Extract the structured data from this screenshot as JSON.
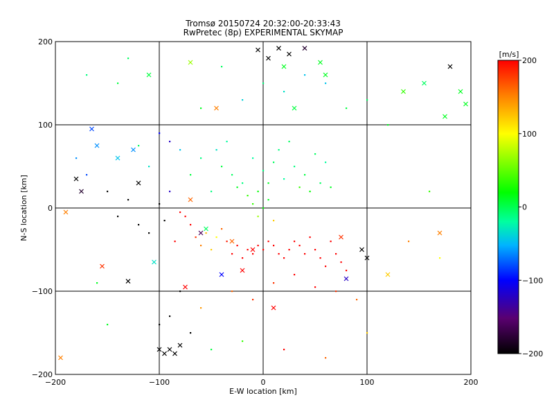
{
  "chart_data": {
    "type": "scatter",
    "title": "Tromsø 20150724 20:32:00-20:33:43",
    "subtitle": "RwPretec (8p) EXPERIMENTAL SKYMAP",
    "xlabel": "E-W location [km]",
    "ylabel": "N-S location [km]",
    "xlim": [
      -200,
      200
    ],
    "ylim": [
      -200,
      200
    ],
    "xticks": [
      -200,
      -100,
      0,
      100,
      200
    ],
    "yticks": [
      -200,
      -100,
      0,
      100,
      200
    ],
    "grid": true,
    "colorbar": {
      "label": "[m/s]",
      "range": [
        -200,
        200
      ],
      "ticks": [
        200,
        100,
        0,
        -100,
        -200
      ],
      "colormap": [
        "#000000",
        "#5a0070",
        "#0000ff",
        "#00b4ff",
        "#00ffa0",
        "#00ff00",
        "#ffff00",
        "#ff8000",
        "#ff0000"
      ]
    },
    "series": [
      {
        "marker": "x",
        "points": [
          [
            -195,
            -180,
            150
          ],
          [
            -190,
            -5,
            150
          ],
          [
            -180,
            35,
            -200
          ],
          [
            -175,
            20,
            -180
          ],
          [
            -165,
            95,
            -80
          ],
          [
            -160,
            75,
            -60
          ],
          [
            -155,
            -70,
            180
          ],
          [
            -140,
            60,
            -40
          ],
          [
            -130,
            -88,
            -200
          ],
          [
            -125,
            70,
            -60
          ],
          [
            -120,
            30,
            -200
          ],
          [
            -105,
            -65,
            -20
          ],
          [
            -100,
            -170,
            -200
          ],
          [
            -95,
            -175,
            -200
          ],
          [
            -90,
            -170,
            -200
          ],
          [
            -85,
            -175,
            -200
          ],
          [
            -80,
            -165,
            -200
          ],
          [
            -75,
            -95,
            200
          ],
          [
            -70,
            10,
            160
          ],
          [
            -60,
            -30,
            -160
          ],
          [
            -55,
            -25,
            20
          ],
          [
            -45,
            120,
            150
          ],
          [
            -30,
            -40,
            160
          ],
          [
            -20,
            -75,
            200
          ],
          [
            -10,
            -50,
            200
          ],
          [
            -5,
            190,
            -200
          ],
          [
            5,
            180,
            -200
          ],
          [
            15,
            192,
            -200
          ],
          [
            20,
            170,
            40
          ],
          [
            25,
            185,
            -200
          ],
          [
            40,
            192,
            -180
          ],
          [
            55,
            175,
            40
          ],
          [
            60,
            160,
            40
          ],
          [
            75,
            -35,
            180
          ],
          [
            80,
            -85,
            -120
          ],
          [
            95,
            -50,
            -200
          ],
          [
            100,
            -60,
            -200
          ],
          [
            120,
            -80,
            120
          ],
          [
            135,
            140,
            60
          ],
          [
            155,
            150,
            20
          ],
          [
            170,
            -30,
            150
          ],
          [
            175,
            110,
            40
          ],
          [
            180,
            170,
            -200
          ],
          [
            190,
            140,
            40
          ],
          [
            195,
            125,
            40
          ],
          [
            -110,
            160,
            30
          ],
          [
            -70,
            175,
            80
          ],
          [
            30,
            120,
            30
          ],
          [
            -40,
            -80,
            -100
          ],
          [
            10,
            -120,
            200
          ]
        ]
      },
      {
        "marker": "dot",
        "points": [
          [
            -180,
            60,
            -60
          ],
          [
            -170,
            40,
            -80
          ],
          [
            -150,
            20,
            -200
          ],
          [
            -140,
            -10,
            -200
          ],
          [
            -130,
            10,
            -200
          ],
          [
            -120,
            -20,
            -200
          ],
          [
            -110,
            -30,
            -200
          ],
          [
            -100,
            5,
            -200
          ],
          [
            -95,
            -15,
            -200
          ],
          [
            -90,
            20,
            -120
          ],
          [
            -85,
            -40,
            200
          ],
          [
            -80,
            -5,
            200
          ],
          [
            -75,
            -10,
            200
          ],
          [
            -70,
            -20,
            200
          ],
          [
            -65,
            -35,
            180
          ],
          [
            -60,
            -45,
            150
          ],
          [
            -55,
            -30,
            130
          ],
          [
            -50,
            -50,
            120
          ],
          [
            -45,
            -35,
            100
          ],
          [
            -40,
            -25,
            160
          ],
          [
            -35,
            -40,
            190
          ],
          [
            -30,
            -55,
            200
          ],
          [
            -25,
            -45,
            200
          ],
          [
            -20,
            -60,
            200
          ],
          [
            -15,
            -50,
            200
          ],
          [
            -10,
            -55,
            200
          ],
          [
            -5,
            -45,
            200
          ],
          [
            0,
            -50,
            200
          ],
          [
            5,
            -40,
            200
          ],
          [
            10,
            -45,
            200
          ],
          [
            15,
            -55,
            200
          ],
          [
            20,
            -60,
            200
          ],
          [
            25,
            -50,
            200
          ],
          [
            30,
            -40,
            200
          ],
          [
            35,
            -45,
            200
          ],
          [
            40,
            -55,
            200
          ],
          [
            45,
            -35,
            200
          ],
          [
            50,
            -50,
            200
          ],
          [
            55,
            -60,
            200
          ],
          [
            60,
            -70,
            200
          ],
          [
            65,
            -40,
            200
          ],
          [
            70,
            -55,
            200
          ],
          [
            75,
            -65,
            200
          ],
          [
            80,
            -75,
            200
          ],
          [
            -40,
            50,
            30
          ],
          [
            -30,
            40,
            20
          ],
          [
            -20,
            30,
            10
          ],
          [
            -10,
            60,
            0
          ],
          [
            0,
            45,
            10
          ],
          [
            10,
            55,
            20
          ],
          [
            20,
            35,
            0
          ],
          [
            30,
            50,
            10
          ],
          [
            40,
            40,
            30
          ],
          [
            50,
            65,
            20
          ],
          [
            60,
            55,
            0
          ],
          [
            -50,
            20,
            10
          ],
          [
            -45,
            70,
            -20
          ],
          [
            -35,
            80,
            0
          ],
          [
            -25,
            25,
            40
          ],
          [
            -15,
            15,
            60
          ],
          [
            -5,
            20,
            50
          ],
          [
            5,
            30,
            40
          ],
          [
            15,
            70,
            10
          ],
          [
            25,
            80,
            20
          ],
          [
            35,
            25,
            60
          ],
          [
            45,
            20,
            50
          ],
          [
            55,
            30,
            20
          ],
          [
            65,
            25,
            40
          ],
          [
            -60,
            60,
            10
          ],
          [
            -70,
            40,
            30
          ],
          [
            0,
            0,
            50
          ],
          [
            -5,
            -10,
            80
          ],
          [
            5,
            10,
            40
          ],
          [
            10,
            -15,
            120
          ],
          [
            -10,
            5,
            60
          ],
          [
            -100,
            90,
            -100
          ],
          [
            -90,
            80,
            -120
          ],
          [
            -80,
            70,
            -40
          ],
          [
            -110,
            50,
            -20
          ],
          [
            -120,
            75,
            20
          ],
          [
            -20,
            130,
            -30
          ],
          [
            0,
            150,
            10
          ],
          [
            20,
            140,
            -20
          ],
          [
            40,
            160,
            -40
          ],
          [
            60,
            150,
            -40
          ],
          [
            -40,
            170,
            20
          ],
          [
            -60,
            120,
            40
          ],
          [
            80,
            120,
            30
          ],
          [
            100,
            130,
            20
          ],
          [
            120,
            100,
            40
          ],
          [
            -30,
            -100,
            160
          ],
          [
            -10,
            -110,
            180
          ],
          [
            10,
            -90,
            180
          ],
          [
            30,
            -80,
            200
          ],
          [
            50,
            -95,
            200
          ],
          [
            70,
            -100,
            180
          ],
          [
            90,
            -110,
            160
          ],
          [
            -60,
            -120,
            140
          ],
          [
            -80,
            -100,
            -200
          ],
          [
            -90,
            -130,
            -200
          ],
          [
            -100,
            -140,
            -200
          ],
          [
            -70,
            -150,
            -200
          ],
          [
            -50,
            -170,
            30
          ],
          [
            -20,
            -160,
            60
          ],
          [
            20,
            -170,
            200
          ],
          [
            60,
            -180,
            160
          ],
          [
            100,
            -150,
            120
          ],
          [
            140,
            -40,
            150
          ],
          [
            160,
            20,
            60
          ],
          [
            170,
            -60,
            100
          ],
          [
            -160,
            -90,
            40
          ],
          [
            -150,
            -140,
            40
          ],
          [
            -140,
            150,
            30
          ],
          [
            -130,
            180,
            20
          ],
          [
            -170,
            160,
            10
          ]
        ]
      }
    ]
  }
}
